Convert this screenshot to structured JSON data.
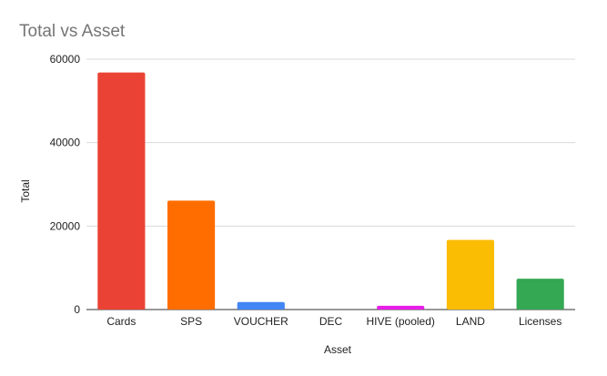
{
  "chart_data": {
    "type": "bar",
    "title": "Total  vs Asset",
    "xlabel": "Asset",
    "ylabel": "Total",
    "categories": [
      "Cards",
      "SPS",
      "VOUCHER",
      "DEC",
      "HIVE (pooled)",
      "LAND",
      "Licenses"
    ],
    "values": [
      56800,
      26100,
      1800,
      0,
      900,
      16700,
      7400
    ],
    "colors": [
      "#ea4335",
      "#ff6d01",
      "#4285f4",
      "#ffffff",
      "#e81ee8",
      "#fbbc04",
      "#34a853"
    ],
    "ylim": [
      0,
      60000
    ],
    "yticks": [
      "0",
      "20000",
      "40000",
      "60000"
    ],
    "ytick_values": [
      0,
      20000,
      40000,
      60000
    ],
    "grid": true,
    "legend": "none"
  }
}
